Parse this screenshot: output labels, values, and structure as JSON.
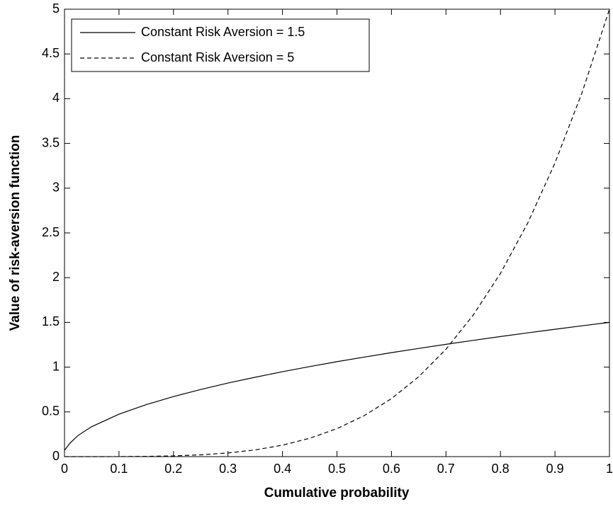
{
  "chart_data": {
    "type": "line",
    "xlabel": "Cumulative probability",
    "ylabel": "Value of risk-aversion function",
    "x": [
      0,
      0.01,
      0.025,
      0.05,
      0.1,
      0.15,
      0.2,
      0.25,
      0.3,
      0.35,
      0.4,
      0.45,
      0.5,
      0.55,
      0.6,
      0.65,
      0.7,
      0.75,
      0.8,
      0.85,
      0.9,
      0.95,
      1
    ],
    "series": [
      {
        "name": "Constant Risk Aversion = 1.5",
        "color": "#000000",
        "linestyle": "solid",
        "values": [
          0.07,
          0.15,
          0.237,
          0.335,
          0.474,
          0.581,
          0.671,
          0.75,
          0.822,
          0.887,
          0.949,
          1.006,
          1.061,
          1.112,
          1.162,
          1.209,
          1.255,
          1.299,
          1.342,
          1.383,
          1.423,
          1.462,
          1.5
        ]
      },
      {
        "name": "Constant Risk Aversion = 5",
        "color": "#000000",
        "linestyle": "dashed",
        "values": [
          0,
          0,
          0,
          0,
          0.0005,
          0.003,
          0.008,
          0.02,
          0.041,
          0.075,
          0.128,
          0.205,
          0.313,
          0.458,
          0.648,
          0.893,
          1.2,
          1.582,
          2.048,
          2.61,
          3.281,
          4.073,
          5
        ]
      }
    ],
    "xlim": [
      0,
      1
    ],
    "xticks": [
      0,
      0.1,
      0.2,
      0.3,
      0.4,
      0.5,
      0.6,
      0.7,
      0.8,
      0.9,
      1
    ],
    "ylim": [
      0,
      5
    ],
    "yticks": [
      0,
      0.5,
      1,
      1.5,
      2,
      2.5,
      3,
      3.5,
      4,
      4.5,
      5
    ],
    "grid": false,
    "legend": "upper-left"
  }
}
